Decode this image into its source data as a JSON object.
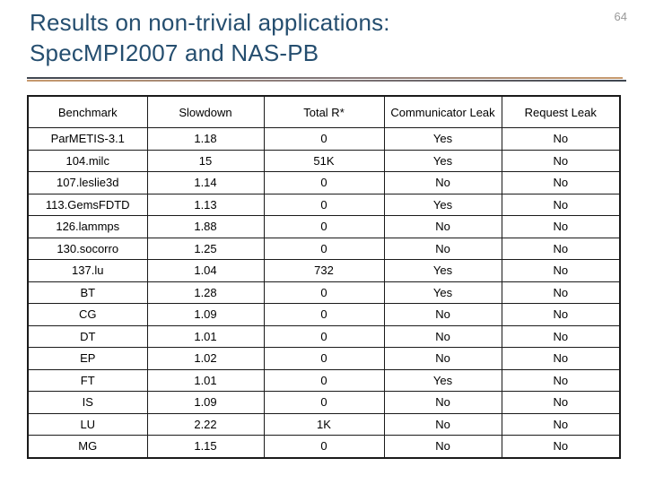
{
  "slide": {
    "page_number": "64",
    "title": {
      "line1": "Results on non-trivial applications:",
      "line2": "SpecMPI2007 and NAS-PB"
    }
  },
  "table": {
    "columns": [
      "Benchmark",
      "Slowdown",
      "Total R*",
      "Communicator Leak",
      "Request Leak"
    ],
    "rows": [
      [
        "ParMETIS-3.1",
        "1.18",
        "0",
        "Yes",
        "No"
      ],
      [
        "104.milc",
        "15",
        "51K",
        "Yes",
        "No"
      ],
      [
        "107.leslie3d",
        "1.14",
        "0",
        "No",
        "No"
      ],
      [
        "113.GemsFDTD",
        "1.13",
        "0",
        "Yes",
        "No"
      ],
      [
        "126.lammps",
        "1.88",
        "0",
        "No",
        "No"
      ],
      [
        "130.socorro",
        "1.25",
        "0",
        "No",
        "No"
      ],
      [
        "137.lu",
        "1.04",
        "732",
        "Yes",
        "No"
      ],
      [
        "BT",
        "1.28",
        "0",
        "Yes",
        "No"
      ],
      [
        "CG",
        "1.09",
        "0",
        "No",
        "No"
      ],
      [
        "DT",
        "1.01",
        "0",
        "No",
        "No"
      ],
      [
        "EP",
        "1.02",
        "0",
        "No",
        "No"
      ],
      [
        "FT",
        "1.01",
        "0",
        "Yes",
        "No"
      ],
      [
        "IS",
        "1.09",
        "0",
        "No",
        "No"
      ],
      [
        "LU",
        "2.22",
        "1K",
        "No",
        "No"
      ],
      [
        "MG",
        "1.15",
        "0",
        "No",
        "No"
      ]
    ]
  },
  "colors": {
    "title_text": "#254E6F",
    "page_number": "#999999",
    "divider_dark": "#3F4650",
    "divider_mid": "#8A7C7C",
    "divider_tan": "#C89A6E",
    "table_border": "#1A1A1A"
  }
}
